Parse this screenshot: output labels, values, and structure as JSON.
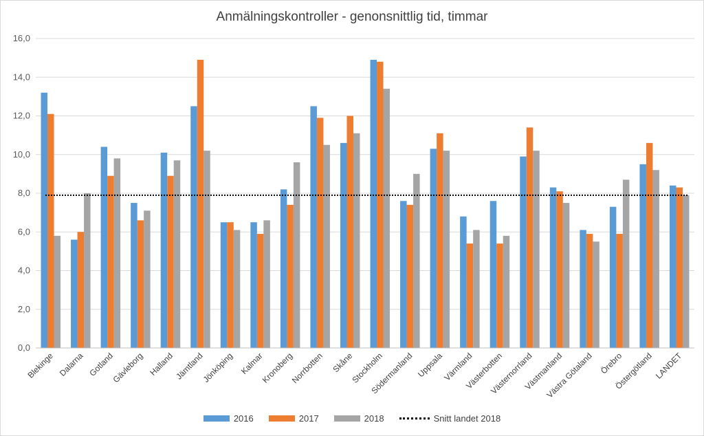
{
  "chart_data": {
    "type": "bar",
    "title": "Anmälningskontroller - genonsnittlig tid, timmar",
    "xlabel": "",
    "ylabel": "",
    "ylim": [
      0,
      16
    ],
    "yticks": [
      "0,0",
      "2,0",
      "4,0",
      "6,0",
      "8,0",
      "10,0",
      "12,0",
      "14,0",
      "16,0"
    ],
    "grid": true,
    "legend_position": "bottom",
    "categories": [
      "Blekinge",
      "Dalarna",
      "Gotland",
      "Gävleborg",
      "Halland",
      "Jämtland",
      "Jönköping",
      "Kalmar",
      "Kronoberg",
      "Norrbotten",
      "Skåne",
      "Stockholm",
      "Södermanland",
      "Uppsala",
      "Värmland",
      "Västerbotten",
      "Västernorrland",
      "Västmanland",
      "Västra Götaland",
      "Örebro",
      "Östergötland",
      "LANDET"
    ],
    "series": [
      {
        "name": "2016",
        "color": "#5b9bd5",
        "values": [
          13.2,
          5.6,
          10.4,
          7.5,
          10.1,
          12.5,
          6.5,
          6.5,
          8.2,
          12.5,
          10.6,
          14.9,
          7.6,
          10.3,
          6.8,
          7.6,
          9.9,
          8.3,
          6.1,
          7.3,
          9.5,
          8.4
        ]
      },
      {
        "name": "2017",
        "color": "#ed7d31",
        "values": [
          12.1,
          6.0,
          8.9,
          6.6,
          8.9,
          14.9,
          6.5,
          5.9,
          7.4,
          11.9,
          12.0,
          14.8,
          7.4,
          11.1,
          5.4,
          5.4,
          11.4,
          8.1,
          5.9,
          5.9,
          10.6,
          8.3
        ]
      },
      {
        "name": "2018",
        "color": "#a5a5a5",
        "values": [
          5.8,
          8.0,
          9.8,
          7.1,
          9.7,
          10.2,
          6.1,
          6.6,
          9.6,
          10.5,
          11.1,
          13.4,
          9.0,
          10.2,
          6.1,
          5.8,
          10.2,
          7.5,
          5.5,
          8.7,
          9.2,
          7.9
        ]
      }
    ],
    "reference_line": {
      "name": "Snitt landet 2018",
      "value": 7.9,
      "color": "#000000",
      "style": "dotted"
    }
  }
}
